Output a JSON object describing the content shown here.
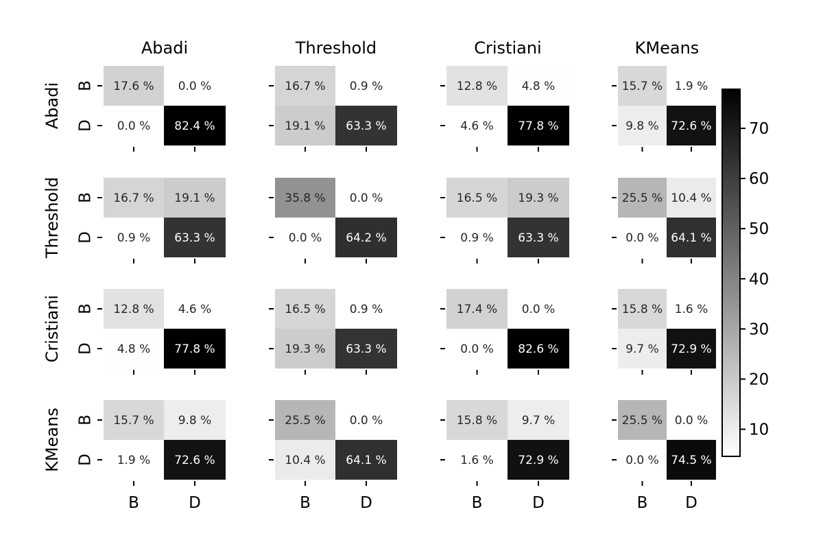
{
  "chart_data": {
    "type": "heatmap",
    "subtype": "confusion-matrix-grid",
    "methods": [
      "Abadi",
      "Threshold",
      "Cristiani",
      "KMeans"
    ],
    "classes": [
      "B",
      "D"
    ],
    "unit_suffix": " %",
    "matrices": [
      [
        [
          [
            17.6,
            0.0
          ],
          [
            0.0,
            82.4
          ]
        ],
        [
          [
            16.7,
            0.9
          ],
          [
            19.1,
            63.3
          ]
        ],
        [
          [
            12.8,
            4.8
          ],
          [
            4.6,
            77.8
          ]
        ],
        [
          [
            15.7,
            1.9
          ],
          [
            9.8,
            72.6
          ]
        ]
      ],
      [
        [
          [
            16.7,
            19.1
          ],
          [
            0.9,
            63.3
          ]
        ],
        [
          [
            35.8,
            0.0
          ],
          [
            0.0,
            64.2
          ]
        ],
        [
          [
            16.5,
            19.3
          ],
          [
            0.9,
            63.3
          ]
        ],
        [
          [
            25.5,
            10.4
          ],
          [
            0.0,
            64.1
          ]
        ]
      ],
      [
        [
          [
            12.8,
            4.6
          ],
          [
            4.8,
            77.8
          ]
        ],
        [
          [
            16.5,
            0.9
          ],
          [
            19.3,
            63.3
          ]
        ],
        [
          [
            17.4,
            0.0
          ],
          [
            0.0,
            82.6
          ]
        ],
        [
          [
            15.8,
            1.6
          ],
          [
            9.7,
            72.9
          ]
        ]
      ],
      [
        [
          [
            15.7,
            9.8
          ],
          [
            1.9,
            72.6
          ]
        ],
        [
          [
            25.5,
            0.0
          ],
          [
            10.4,
            64.1
          ]
        ],
        [
          [
            15.8,
            9.7
          ],
          [
            1.6,
            72.9
          ]
        ],
        [
          [
            25.5,
            0.0
          ],
          [
            0.0,
            74.5
          ]
        ]
      ]
    ],
    "colorbar": {
      "colormap": "Greys",
      "vmin": 4.6,
      "vmax": 77.8,
      "ticks": [
        10,
        20,
        30,
        40,
        50,
        60,
        70
      ]
    },
    "grid": false,
    "legend": "colorbar-right"
  }
}
